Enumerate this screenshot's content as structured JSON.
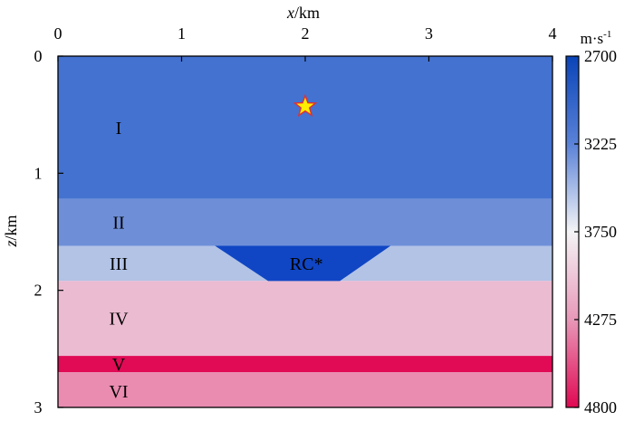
{
  "axes": {
    "x_label_var": "x",
    "x_label_unit": "/km",
    "z_label_var": "z",
    "z_label_unit": "/km",
    "x_ticks": [
      "0",
      "1",
      "2",
      "3",
      "4"
    ],
    "z_ticks": [
      "0",
      "1",
      "2",
      "3"
    ],
    "x_range": [
      0,
      4
    ],
    "z_range": [
      0,
      3
    ]
  },
  "layers": [
    {
      "label": "I",
      "z_top": 0.0,
      "z_bottom": 1.22,
      "velocity": 2950,
      "color": "#4472d0"
    },
    {
      "label": "II",
      "z_top": 1.22,
      "z_bottom": 1.62,
      "velocity": 3300,
      "color": "#6e8fd8"
    },
    {
      "label": "III",
      "z_top": 1.62,
      "z_bottom": 1.92,
      "velocity": 3600,
      "color": "#b2c3e6"
    },
    {
      "label": "IV",
      "z_top": 1.92,
      "z_bottom": 2.56,
      "velocity": 4150,
      "color": "#ebbbd1"
    },
    {
      "label": "V",
      "z_top": 2.56,
      "z_bottom": 2.7,
      "velocity": 4800,
      "color": "#e00a55"
    },
    {
      "label": "VI",
      "z_top": 2.7,
      "z_bottom": 3.0,
      "velocity": 4400,
      "color": "#e98cb0"
    }
  ],
  "body": {
    "label": "RC*",
    "color": "#1046c4",
    "top_x": [
      1.27,
      2.69
    ],
    "bottom_x": [
      1.7,
      2.28
    ],
    "z_top": 1.62,
    "z_bottom": 1.92
  },
  "source": {
    "x": 2.0,
    "z": 0.43,
    "fill": "#ffee00",
    "stroke": "#e03030"
  },
  "colorbar": {
    "unit": "m·s",
    "unit_sup": "-1",
    "ticks": [
      "2700",
      "3225",
      "3750",
      "4275",
      "4800"
    ],
    "range": [
      2700,
      4800
    ],
    "colors": [
      "#0a44b8",
      "#5a82d8",
      "#f4f4f6",
      "#e898b8",
      "#e00852"
    ]
  }
}
